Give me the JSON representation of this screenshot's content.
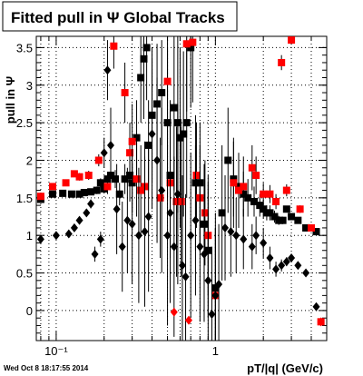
{
  "title": "Fitted pull in Ψ   Global Tracks",
  "footer_date": "Wed Oct  8 18:17:55 2014",
  "chart_data": {
    "type": "scatter",
    "title": "Fitted pull in Ψ   Global Tracks",
    "xlabel": "pT/|q| (GeV/c)",
    "ylabel": "pull in Ψ",
    "x_scale": "log",
    "xlim": [
      0.075,
      5.0
    ],
    "ylim": [
      -0.4,
      3.65
    ],
    "x_tick_labels": [
      "10⁻¹",
      "1"
    ],
    "y_tick_labels": [
      "0",
      "0.5",
      "1",
      "1.5",
      "2",
      "2.5",
      "3",
      "3.5"
    ],
    "grid": true,
    "colors": {
      "black_series": "#000000",
      "red_series": "#ff0000"
    },
    "series": [
      {
        "marker": "square",
        "color": "#000000",
        "points": [
          [
            0.08,
            1.48,
            0.02
          ],
          [
            0.095,
            1.55,
            0.02
          ],
          [
            0.11,
            1.56,
            0.02
          ],
          [
            0.125,
            1.55,
            0.02
          ],
          [
            0.14,
            1.55,
            0.03
          ],
          [
            0.15,
            1.57,
            0.03
          ],
          [
            0.165,
            1.58,
            0.04
          ],
          [
            0.18,
            1.6,
            0.05
          ],
          [
            0.19,
            1.7,
            0.06
          ],
          [
            0.2,
            1.62,
            0.06
          ],
          [
            0.21,
            1.75,
            0.08
          ],
          [
            0.22,
            1.8,
            0.1
          ],
          [
            0.235,
            1.75,
            0.12
          ],
          [
            0.25,
            1.55,
            0.15
          ],
          [
            0.27,
            1.75,
            0.2
          ],
          [
            0.29,
            1.8,
            0.35
          ],
          [
            0.3,
            1.7,
            0.4
          ],
          [
            0.32,
            2.3,
            0.5
          ],
          [
            0.34,
            3.1,
            0.6
          ],
          [
            0.355,
            3.35,
            0.8
          ],
          [
            0.37,
            3.5,
            0.7
          ],
          [
            0.38,
            2.2,
            0.6
          ],
          [
            0.4,
            2.6,
            0.9
          ],
          [
            0.43,
            2.75,
            0.8
          ],
          [
            0.46,
            2.9,
            0.7
          ],
          [
            0.5,
            2.5,
            1.0
          ],
          [
            0.52,
            1.8,
            1.0
          ],
          [
            0.55,
            2.7,
            1.1
          ],
          [
            0.58,
            2.5,
            1.2
          ],
          [
            0.6,
            2.3,
            1.2
          ],
          [
            0.63,
            2.35,
            1.1
          ],
          [
            0.66,
            2.5,
            1.0
          ],
          [
            0.7,
            3.5,
            0.8
          ],
          [
            0.75,
            1.7,
            0.9
          ],
          [
            0.8,
            1.7,
            0.8
          ],
          [
            0.85,
            1.15,
            0.8
          ],
          [
            0.9,
            0.8,
            0.9
          ],
          [
            1.0,
            0.3,
            1.0
          ],
          [
            1.1,
            1.3,
            0.9
          ],
          [
            1.2,
            2.0,
            0.7
          ],
          [
            1.3,
            1.75,
            0.5
          ],
          [
            1.4,
            1.65,
            0.4
          ],
          [
            1.5,
            1.55,
            0.3
          ],
          [
            1.6,
            1.5,
            0.25
          ],
          [
            1.75,
            1.45,
            0.2
          ],
          [
            1.9,
            1.4,
            0.15
          ],
          [
            2.0,
            1.35,
            0.12
          ],
          [
            2.1,
            1.3,
            0.1
          ],
          [
            2.2,
            1.3,
            0.1
          ],
          [
            2.35,
            1.25,
            0.08
          ],
          [
            2.5,
            1.2,
            0.06
          ],
          [
            2.65,
            1.2,
            0.05
          ],
          [
            2.8,
            1.35,
            0.04
          ],
          [
            3.0,
            1.25,
            0.04
          ],
          [
            3.3,
            1.2,
            0.03
          ],
          [
            3.7,
            1.1,
            0.03
          ],
          [
            4.3,
            1.05,
            0.03
          ]
        ]
      },
      {
        "marker": "square",
        "color": "#ff0000",
        "points": [
          [
            0.08,
            1.52,
            0.03
          ],
          [
            0.095,
            1.65,
            0.03
          ],
          [
            0.115,
            1.7,
            0.04
          ],
          [
            0.13,
            1.82,
            0.04
          ],
          [
            0.14,
            1.78,
            0.05
          ],
          [
            0.16,
            1.8,
            0.06
          ],
          [
            0.185,
            2.0,
            0.08
          ],
          [
            0.21,
            1.65,
            0.1
          ],
          [
            0.23,
            3.52,
            0.3
          ],
          [
            0.27,
            2.9,
            0.4
          ],
          [
            0.29,
            2.1,
            0.4
          ],
          [
            0.3,
            2.25,
            0.5
          ],
          [
            0.32,
            1.75,
            0.5
          ],
          [
            0.34,
            1.6,
            0.6
          ],
          [
            0.36,
            1.65,
            0.6
          ],
          [
            0.45,
            1.5,
            0.8
          ],
          [
            0.5,
            3.05,
            0.9
          ],
          [
            0.52,
            1.7,
            1.0
          ],
          [
            0.57,
            1.45,
            1.0
          ],
          [
            0.61,
            1.45,
            1.0
          ],
          [
            0.66,
            3.55,
            0.9
          ],
          [
            0.72,
            3.57,
            0.8
          ],
          [
            0.76,
            1.8,
            0.7
          ],
          [
            0.8,
            1.5,
            0.7
          ],
          [
            0.86,
            1.3,
            0.7
          ],
          [
            0.9,
            1.0,
            0.8
          ],
          [
            1.0,
            0.2,
            0.9
          ],
          [
            1.3,
            1.7,
            0.6
          ],
          [
            1.4,
            1.6,
            0.5
          ],
          [
            1.5,
            1.65,
            0.4
          ],
          [
            1.7,
            1.9,
            0.3
          ],
          [
            1.8,
            1.8,
            0.25
          ],
          [
            2.0,
            1.55,
            0.15
          ],
          [
            2.2,
            1.55,
            0.12
          ],
          [
            2.4,
            1.45,
            0.1
          ],
          [
            2.6,
            3.3,
            0.1
          ],
          [
            2.8,
            1.6,
            0.08
          ],
          [
            3.0,
            3.6,
            0.06
          ],
          [
            3.4,
            1.35,
            0.05
          ],
          [
            4.0,
            1.1,
            0.04
          ],
          [
            4.6,
            -0.15,
            0.04
          ]
        ]
      },
      {
        "marker": "diamond",
        "color": "#000000",
        "points": [
          [
            0.08,
            0.95,
            0.03
          ],
          [
            0.1,
            1.0,
            0.03
          ],
          [
            0.12,
            1.02,
            0.03
          ],
          [
            0.13,
            1.1,
            0.04
          ],
          [
            0.14,
            1.2,
            0.05
          ],
          [
            0.155,
            1.3,
            0.05
          ],
          [
            0.165,
            1.42,
            0.06
          ],
          [
            0.175,
            0.75,
            0.1
          ],
          [
            0.19,
            0.95,
            0.1
          ],
          [
            0.2,
            2.1,
            0.2
          ],
          [
            0.21,
            3.2,
            0.4
          ],
          [
            0.22,
            2.2,
            0.5
          ],
          [
            0.24,
            1.35,
            0.6
          ],
          [
            0.26,
            0.85,
            0.6
          ],
          [
            0.28,
            1.2,
            0.7
          ],
          [
            0.3,
            1.15,
            0.8
          ],
          [
            0.33,
            1.0,
            0.9
          ],
          [
            0.36,
            1.05,
            1.0
          ],
          [
            0.38,
            1.25,
            1.0
          ],
          [
            0.4,
            2.35,
            1.0
          ],
          [
            0.43,
            2.0,
            1.1
          ],
          [
            0.46,
            1.6,
            1.1
          ],
          [
            0.5,
            1.0,
            1.2
          ],
          [
            0.52,
            1.3,
            1.2
          ],
          [
            0.55,
            0.85,
            1.2
          ],
          [
            0.58,
            1.55,
            1.2
          ],
          [
            0.62,
            0.6,
            1.2
          ],
          [
            0.65,
            0.45,
            1.1
          ],
          [
            0.7,
            1.0,
            1.1
          ],
          [
            0.75,
            1.2,
            1.0
          ],
          [
            0.8,
            0.85,
            1.0
          ],
          [
            0.85,
            0.75,
            0.9
          ],
          [
            0.9,
            0.4,
            0.9
          ],
          [
            0.95,
            -0.05,
            0.9
          ],
          [
            1.0,
            0.2,
            0.9
          ],
          [
            1.05,
            0.35,
            0.8
          ],
          [
            1.15,
            1.1,
            0.7
          ],
          [
            1.25,
            1.05,
            0.6
          ],
          [
            1.35,
            1.0,
            0.5
          ],
          [
            1.5,
            0.95,
            0.4
          ],
          [
            1.7,
            0.85,
            0.3
          ],
          [
            1.8,
            1.0,
            0.25
          ],
          [
            2.0,
            0.9,
            0.2
          ],
          [
            2.2,
            0.7,
            0.15
          ],
          [
            2.4,
            0.55,
            0.1
          ],
          [
            2.6,
            0.6,
            0.08
          ],
          [
            2.8,
            0.65,
            0.06
          ],
          [
            3.0,
            0.7,
            0.05
          ],
          [
            3.3,
            0.6,
            0.05
          ],
          [
            3.7,
            0.5,
            0.04
          ],
          [
            4.3,
            0.05,
            0.04
          ]
        ]
      },
      {
        "marker": "diamond",
        "color": "#ff0000",
        "points": [
          [
            0.55,
            -0.02,
            0.05
          ],
          [
            0.68,
            -0.13,
            0.05
          ],
          [
            4.6,
            -0.15,
            0.04
          ]
        ]
      }
    ]
  }
}
